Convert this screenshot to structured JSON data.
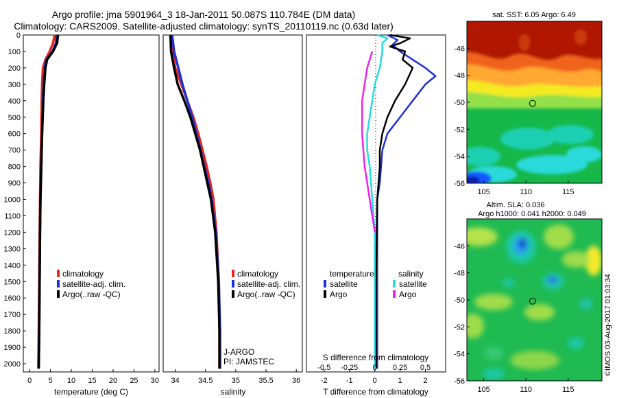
{
  "title": {
    "line1": "Argo profile: jma 5901964_3 18-Jan-2011 50.087S 110.784E (DM data)",
    "line2": "Climatology: CARS2009. Satellite-adjusted climatology: synTS_20110119.nc (0.63d later)"
  },
  "stamp": "©IMOS 03-Aug-2017 01:03:34",
  "colors": {
    "red": "#e8251c",
    "blue": "#1f2fd6",
    "black": "#000000",
    "cyan": "#22dddd",
    "magenta": "#ee22ee"
  },
  "chart_data": [
    {
      "type": "line",
      "name": "temperature-profile",
      "xlabel": "temperature (deg C)",
      "xlim": [
        -1.5,
        31
      ],
      "ylim": [
        2050,
        0
      ],
      "xticks": [
        "0",
        "5",
        "10",
        "15",
        "20",
        "25",
        "30"
      ],
      "yticks": [
        "0",
        "100",
        "200",
        "300",
        "400",
        "500",
        "600",
        "700",
        "800",
        "900",
        "1000",
        "1100",
        "1200",
        "1300",
        "1400",
        "1500",
        "1600",
        "1700",
        "1800",
        "1900",
        "2000"
      ],
      "legend": {
        "position": "lower-middle",
        "labels": [
          "climatology",
          "satellite-adj. clim.",
          "Argo(..raw -QC)"
        ]
      },
      "series": [
        {
          "color": "red",
          "points": [
            [
              6.0,
              0
            ],
            [
              5.6,
              50
            ],
            [
              4.8,
              100
            ],
            [
              3.8,
              150
            ],
            [
              3.2,
              200
            ],
            [
              3.0,
              300
            ],
            [
              2.9,
              400
            ],
            [
              2.8,
              600
            ],
            [
              2.6,
              800
            ],
            [
              2.5,
              1000
            ],
            [
              2.4,
              1200
            ],
            [
              2.3,
              1500
            ],
            [
              2.2,
              1800
            ],
            [
              2.1,
              2030
            ]
          ]
        },
        {
          "color": "blue",
          "points": [
            [
              6.5,
              0
            ],
            [
              6.3,
              50
            ],
            [
              5.5,
              100
            ],
            [
              4.0,
              150
            ],
            [
              3.6,
              200
            ],
            [
              3.4,
              300
            ],
            [
              3.2,
              400
            ],
            [
              3.0,
              600
            ],
            [
              2.8,
              800
            ],
            [
              2.6,
              1000
            ],
            [
              2.5,
              1200
            ],
            [
              2.4,
              1500
            ],
            [
              2.3,
              1800
            ],
            [
              2.2,
              2030
            ]
          ]
        },
        {
          "color": "black",
          "points": [
            [
              6.8,
              0
            ],
            [
              6.6,
              50
            ],
            [
              5.6,
              100
            ],
            [
              4.2,
              150
            ],
            [
              3.8,
              200
            ],
            [
              3.5,
              300
            ],
            [
              3.3,
              400
            ],
            [
              3.0,
              600
            ],
            [
              2.8,
              800
            ],
            [
              2.6,
              1000
            ],
            [
              2.5,
              1200
            ],
            [
              2.4,
              1500
            ],
            [
              2.3,
              1800
            ],
            [
              2.2,
              2030
            ]
          ]
        }
      ]
    },
    {
      "type": "line",
      "name": "salinity-profile",
      "xlabel": "salinity",
      "xlim": [
        33.8,
        36.1
      ],
      "ylim": [
        2050,
        0
      ],
      "xticks": [
        "34",
        "34.5",
        "35",
        "35.5",
        "36"
      ],
      "legend": {
        "position": "lower-middle",
        "labels": [
          "climatology",
          "satellite-adj. clim.",
          "Argo(..raw -QC)"
        ]
      },
      "annotation": [
        "J-ARGO",
        "PI: JAMSTEC"
      ],
      "series": [
        {
          "color": "red",
          "points": [
            [
              33.92,
              0
            ],
            [
              33.95,
              100
            ],
            [
              34.0,
              200
            ],
            [
              34.1,
              300
            ],
            [
              34.2,
              400
            ],
            [
              34.3,
              500
            ],
            [
              34.38,
              600
            ],
            [
              34.45,
              700
            ],
            [
              34.52,
              800
            ],
            [
              34.58,
              900
            ],
            [
              34.63,
              1000
            ],
            [
              34.68,
              1200
            ],
            [
              34.72,
              1500
            ],
            [
              34.73,
              1800
            ],
            [
              34.73,
              2030
            ]
          ]
        },
        {
          "color": "blue",
          "points": [
            [
              33.95,
              0
            ],
            [
              33.98,
              100
            ],
            [
              34.05,
              200
            ],
            [
              34.12,
              300
            ],
            [
              34.2,
              400
            ],
            [
              34.28,
              500
            ],
            [
              34.35,
              600
            ],
            [
              34.42,
              700
            ],
            [
              34.48,
              800
            ],
            [
              34.55,
              900
            ],
            [
              34.6,
              1000
            ],
            [
              34.67,
              1200
            ],
            [
              34.72,
              1500
            ],
            [
              34.74,
              1800
            ],
            [
              34.74,
              2030
            ]
          ]
        },
        {
          "color": "black",
          "points": [
            [
              33.92,
              0
            ],
            [
              33.93,
              100
            ],
            [
              33.98,
              200
            ],
            [
              34.04,
              300
            ],
            [
              34.15,
              400
            ],
            [
              34.25,
              500
            ],
            [
              34.33,
              600
            ],
            [
              34.41,
              700
            ],
            [
              34.47,
              800
            ],
            [
              34.53,
              900
            ],
            [
              34.59,
              1000
            ],
            [
              34.66,
              1200
            ],
            [
              34.71,
              1500
            ],
            [
              34.73,
              1800
            ],
            [
              34.73,
              2030
            ]
          ]
        }
      ]
    },
    {
      "type": "line",
      "name": "difference-profile",
      "xlabel": "T difference from climatology",
      "xlabel2": "S difference from climatology",
      "xlim": [
        -2.7,
        2.8
      ],
      "ylim": [
        2050,
        0
      ],
      "xticks": [
        "-2",
        "-1",
        "0",
        "1",
        "2"
      ],
      "xticks2": [
        "-0.5",
        "-0.25",
        "0",
        "0.25",
        "0.5"
      ],
      "legend": {
        "position": "lower-middle",
        "headers": [
          "temperature",
          "salinity"
        ],
        "labels": [
          "satellite",
          "Argo",
          "satellite",
          "Argo"
        ]
      },
      "series": [
        {
          "name": "temperature satellite",
          "color": "blue",
          "points": [
            [
              0.5,
              0
            ],
            [
              0.9,
              30
            ],
            [
              0.7,
              60
            ],
            [
              1.0,
              100
            ],
            [
              1.5,
              150
            ],
            [
              2.0,
              200
            ],
            [
              2.4,
              250
            ],
            [
              2.0,
              300
            ],
            [
              1.5,
              400
            ],
            [
              1.0,
              500
            ],
            [
              0.5,
              600
            ],
            [
              0.3,
              700
            ],
            [
              0.25,
              800
            ],
            [
              0.2,
              900
            ],
            [
              0.1,
              1000
            ],
            [
              0.1,
              1500
            ],
            [
              0.1,
              2030
            ]
          ]
        },
        {
          "name": "temperature Argo",
          "color": "black",
          "points": [
            [
              0.6,
              0
            ],
            [
              1.4,
              20
            ],
            [
              1.0,
              50
            ],
            [
              0.6,
              70
            ],
            [
              1.2,
              100
            ],
            [
              1.1,
              150
            ],
            [
              1.5,
              200
            ],
            [
              1.2,
              300
            ],
            [
              0.8,
              400
            ],
            [
              0.5,
              500
            ],
            [
              0.3,
              600
            ],
            [
              0.2,
              700
            ],
            [
              0.2,
              800
            ],
            [
              0.1,
              1000
            ],
            [
              0.05,
              1500
            ],
            [
              0.05,
              2030
            ]
          ]
        },
        {
          "name": "salinity satellite",
          "color": "cyan",
          "points": [
            [
              0.1,
              0
            ],
            [
              0.5,
              20
            ],
            [
              0.3,
              50
            ],
            [
              0.3,
              100
            ],
            [
              0.2,
              200
            ],
            [
              0.0,
              300
            ],
            [
              -0.1,
              400
            ],
            [
              -0.2,
              500
            ],
            [
              -0.3,
              600
            ],
            [
              -0.3,
              700
            ],
            [
              -0.2,
              800
            ],
            [
              -0.1,
              1000
            ],
            [
              0.0,
              1200
            ],
            [
              0.0,
              1500
            ],
            [
              0.0,
              2030
            ]
          ]
        },
        {
          "name": "salinity Argo",
          "color": "magenta",
          "points": [
            [
              -0.1,
              100
            ],
            [
              -0.2,
              150
            ],
            [
              -0.3,
              200
            ],
            [
              -0.4,
              300
            ],
            [
              -0.5,
              400
            ],
            [
              -0.5,
              500
            ],
            [
              -0.5,
              600
            ],
            [
              -0.45,
              700
            ],
            [
              -0.4,
              800
            ],
            [
              -0.3,
              900
            ],
            [
              -0.2,
              1000
            ],
            [
              -0.1,
              1100
            ],
            [
              0.0,
              1200
            ]
          ]
        }
      ]
    },
    {
      "type": "heatmap",
      "name": "sst-map",
      "title": "sat. SST: 6.05 Argo: 6.49",
      "xlim": [
        103,
        119
      ],
      "ylim": [
        -56,
        -44
      ],
      "xticks": [
        "105",
        "110",
        "115"
      ],
      "yticks": [
        "-46",
        "-48",
        "-50",
        "-52",
        "-54",
        "-56"
      ],
      "marker": [
        110.784,
        -50.087
      ]
    },
    {
      "type": "heatmap",
      "name": "sla-map",
      "title": "Altim. SLA: 0.036",
      "subtitle": "Argo h1000: 0.041 h2000: 0.049",
      "xlim": [
        103,
        119
      ],
      "ylim": [
        -56,
        -44
      ],
      "xticks": [
        "105",
        "110",
        "115"
      ],
      "yticks": [
        "-46",
        "-48",
        "-50",
        "-52",
        "-54",
        "-56"
      ],
      "marker": [
        110.784,
        -50.087
      ]
    }
  ]
}
